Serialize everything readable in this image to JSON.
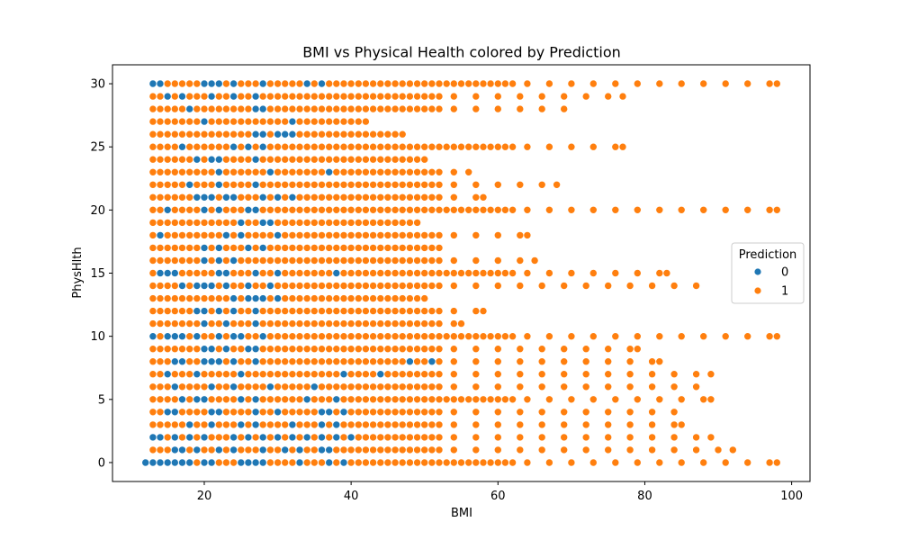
{
  "chart_data": {
    "type": "scatter",
    "title": "BMI vs Physical Health colored by Prediction",
    "xlabel": "BMI",
    "ylabel": "PhysHlth",
    "xlim": [
      7.5,
      102.5
    ],
    "ylim": [
      -1.5,
      31.5
    ],
    "x_ticks": [
      20,
      40,
      60,
      80,
      100
    ],
    "y_ticks": [
      0,
      5,
      10,
      15,
      20,
      25,
      30
    ],
    "grid": false,
    "legend": {
      "title": "Prediction",
      "placement": "center-right"
    },
    "series": [
      {
        "name": "0",
        "color": "#1f77b4",
        "points": [
          [
            12,
            0
          ],
          [
            13,
            0
          ],
          [
            14,
            0
          ],
          [
            15,
            0
          ],
          [
            16,
            0
          ],
          [
            17,
            0
          ],
          [
            18,
            0
          ],
          [
            20,
            0
          ],
          [
            21,
            0
          ],
          [
            25,
            0
          ],
          [
            26,
            0
          ],
          [
            27,
            0
          ],
          [
            28,
            0
          ],
          [
            33,
            0
          ],
          [
            37,
            0
          ],
          [
            39,
            0
          ],
          [
            16,
            1
          ],
          [
            17,
            1
          ],
          [
            19,
            1
          ],
          [
            22,
            1
          ],
          [
            24,
            1
          ],
          [
            28,
            1
          ],
          [
            31,
            1
          ],
          [
            33,
            1
          ],
          [
            36,
            1
          ],
          [
            37,
            1
          ],
          [
            13,
            2
          ],
          [
            14,
            2
          ],
          [
            16,
            2
          ],
          [
            18,
            2
          ],
          [
            20,
            2
          ],
          [
            24,
            2
          ],
          [
            26,
            2
          ],
          [
            28,
            2
          ],
          [
            30,
            2
          ],
          [
            32,
            2
          ],
          [
            34,
            2
          ],
          [
            36,
            2
          ],
          [
            38,
            2
          ],
          [
            40,
            2
          ],
          [
            18,
            3
          ],
          [
            21,
            3
          ],
          [
            25,
            3
          ],
          [
            27,
            3
          ],
          [
            32,
            3
          ],
          [
            36,
            3
          ],
          [
            38,
            3
          ],
          [
            15,
            4
          ],
          [
            16,
            4
          ],
          [
            21,
            4
          ],
          [
            22,
            4
          ],
          [
            27,
            4
          ],
          [
            30,
            4
          ],
          [
            36,
            4
          ],
          [
            37,
            4
          ],
          [
            39,
            4
          ],
          [
            17,
            5
          ],
          [
            19,
            5
          ],
          [
            20,
            5
          ],
          [
            25,
            5
          ],
          [
            27,
            5
          ],
          [
            34,
            5
          ],
          [
            38,
            5
          ],
          [
            16,
            6
          ],
          [
            21,
            6
          ],
          [
            24,
            6
          ],
          [
            29,
            6
          ],
          [
            35,
            6
          ],
          [
            15,
            7
          ],
          [
            19,
            7
          ],
          [
            25,
            7
          ],
          [
            39,
            7
          ],
          [
            44,
            7
          ],
          [
            16,
            8
          ],
          [
            17,
            8
          ],
          [
            20,
            8
          ],
          [
            21,
            8
          ],
          [
            22,
            8
          ],
          [
            24,
            8
          ],
          [
            27,
            8
          ],
          [
            48,
            8
          ],
          [
            51,
            8
          ],
          [
            20,
            9
          ],
          [
            21,
            9
          ],
          [
            23,
            9
          ],
          [
            26,
            9
          ],
          [
            27,
            9
          ],
          [
            13,
            10
          ],
          [
            15,
            10
          ],
          [
            16,
            10
          ],
          [
            17,
            10
          ],
          [
            19,
            10
          ],
          [
            22,
            10
          ],
          [
            24,
            10
          ],
          [
            25,
            10
          ],
          [
            28,
            10
          ],
          [
            20,
            11
          ],
          [
            23,
            11
          ],
          [
            27,
            11
          ],
          [
            19,
            12
          ],
          [
            20,
            12
          ],
          [
            22,
            12
          ],
          [
            24,
            12
          ],
          [
            27,
            12
          ],
          [
            24,
            13
          ],
          [
            26,
            13
          ],
          [
            27,
            13
          ],
          [
            28,
            13
          ],
          [
            30,
            13
          ],
          [
            17,
            14
          ],
          [
            19,
            14
          ],
          [
            20,
            14
          ],
          [
            21,
            14
          ],
          [
            23,
            14
          ],
          [
            26,
            14
          ],
          [
            29,
            14
          ],
          [
            14,
            15
          ],
          [
            15,
            15
          ],
          [
            16,
            15
          ],
          [
            22,
            15
          ],
          [
            23,
            15
          ],
          [
            27,
            15
          ],
          [
            30,
            15
          ],
          [
            38,
            15
          ],
          [
            20,
            16
          ],
          [
            22,
            16
          ],
          [
            24,
            16
          ],
          [
            20,
            17
          ],
          [
            22,
            17
          ],
          [
            26,
            17
          ],
          [
            28,
            17
          ],
          [
            14,
            18
          ],
          [
            23,
            18
          ],
          [
            25,
            18
          ],
          [
            30,
            18
          ],
          [
            25,
            19
          ],
          [
            28,
            19
          ],
          [
            29,
            19
          ],
          [
            15,
            20
          ],
          [
            20,
            20
          ],
          [
            22,
            20
          ],
          [
            26,
            20
          ],
          [
            27,
            20
          ],
          [
            19,
            21
          ],
          [
            20,
            21
          ],
          [
            21,
            21
          ],
          [
            23,
            21
          ],
          [
            24,
            21
          ],
          [
            28,
            21
          ],
          [
            30,
            21
          ],
          [
            32,
            21
          ],
          [
            18,
            22
          ],
          [
            22,
            22
          ],
          [
            27,
            22
          ],
          [
            22,
            23
          ],
          [
            29,
            23
          ],
          [
            37,
            23
          ],
          [
            19,
            24
          ],
          [
            21,
            24
          ],
          [
            22,
            24
          ],
          [
            27,
            24
          ],
          [
            17,
            25
          ],
          [
            24,
            25
          ],
          [
            26,
            25
          ],
          [
            28,
            25
          ],
          [
            27,
            26
          ],
          [
            28,
            26
          ],
          [
            30,
            26
          ],
          [
            31,
            26
          ],
          [
            32,
            26
          ],
          [
            20,
            27
          ],
          [
            32,
            27
          ],
          [
            18,
            28
          ],
          [
            27,
            28
          ],
          [
            28,
            28
          ],
          [
            15,
            29
          ],
          [
            17,
            29
          ],
          [
            21,
            29
          ],
          [
            24,
            29
          ],
          [
            27,
            29
          ],
          [
            13,
            30
          ],
          [
            14,
            30
          ],
          [
            20,
            30
          ],
          [
            21,
            30
          ],
          [
            22,
            30
          ],
          [
            24,
            30
          ],
          [
            28,
            30
          ],
          [
            34,
            30
          ],
          [
            36,
            30
          ]
        ]
      },
      {
        "name": "1",
        "color": "#ff7f0e",
        "points": []
      }
    ]
  }
}
